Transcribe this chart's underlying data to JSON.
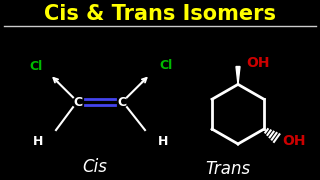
{
  "title": "Cis & Trans Isomers",
  "title_color": "#FFFF00",
  "bg_color": "#000000",
  "underline_color": "#CCCCCC",
  "cl_color": "#00BB00",
  "oh_color": "#CC0000",
  "bond_color": "#FFFFFF",
  "double_bond_color": "#4444EE",
  "label_cis": "Cis",
  "label_trans": "Trans"
}
